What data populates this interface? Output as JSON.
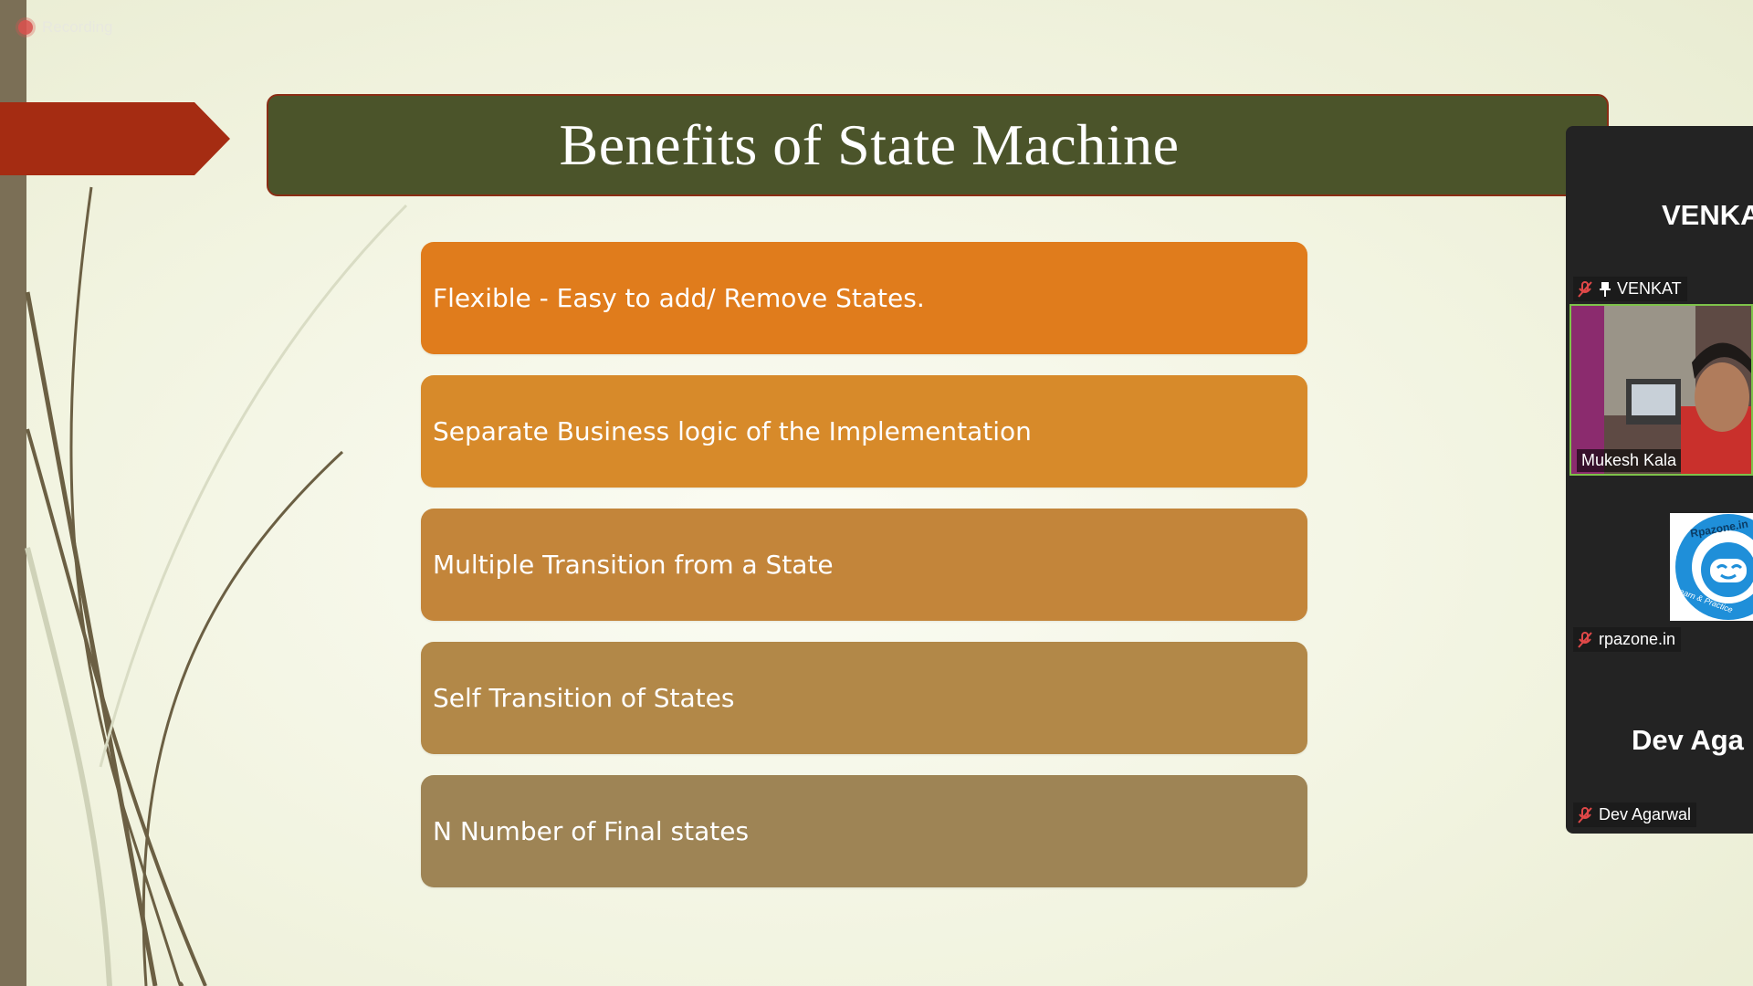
{
  "recording": {
    "label": "Recording"
  },
  "slide": {
    "title": "Benefits of State Machine",
    "items": [
      {
        "text": "Flexible - Easy to add/ Remove States.",
        "color": "#e07c1c"
      },
      {
        "text": "Separate Business logic of the Implementation",
        "color": "#d78a2a"
      },
      {
        "text": "Multiple Transition from a State",
        "color": "#c3853a"
      },
      {
        "text": "Self Transition of States",
        "color": "#b28848"
      },
      {
        "text": "N Number of Final states",
        "color": "#9e8455"
      }
    ],
    "colors": {
      "title_bg": "#4b542a",
      "title_border": "#8a2c14",
      "arrow": "#a52c12",
      "band": "#7b6f56"
    }
  },
  "participants": {
    "tile1": {
      "display_name": "VENKA",
      "name": "VENKAT",
      "muted": true,
      "pinned": true
    },
    "tile2": {
      "name": "Mukesh Kala",
      "video_on": true
    },
    "tile3": {
      "name": "rpazone.in",
      "muted": true,
      "logo_text": "Rpazone.in",
      "logo_tagline": "Learn & Practice"
    },
    "tile4": {
      "display_name": "Dev Aga",
      "name": "Dev Agarwal",
      "muted": true
    }
  }
}
